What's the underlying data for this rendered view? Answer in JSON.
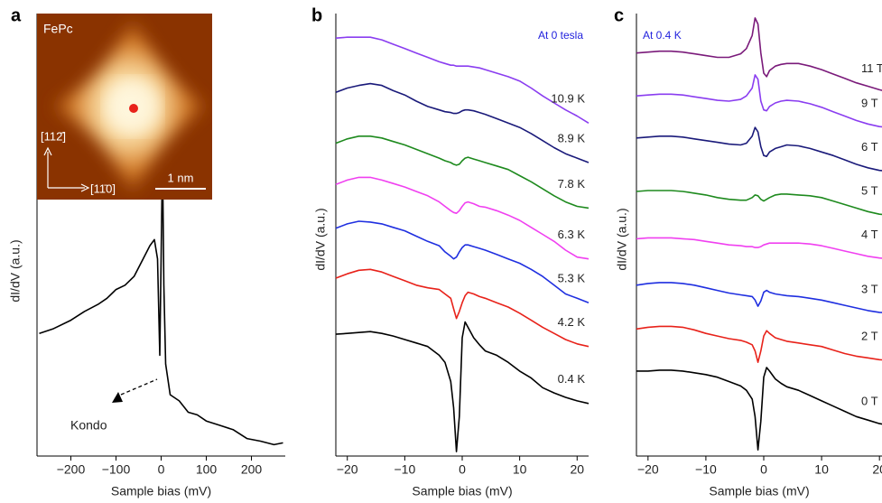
{
  "chart_data": [
    {
      "type": "line",
      "label": "a",
      "xlabel": "Sample bias (mV)",
      "ylabel": "dI/dV (a.u.)",
      "annotation": "Kondo",
      "inset": {
        "title": "FePc",
        "axis_y": "[112̄]",
        "axis_x": "[11̄0]",
        "scale_bar": "1 nm"
      },
      "x": [
        -270,
        -240,
        -200,
        -170,
        -140,
        -120,
        -100,
        -80,
        -60,
        -40,
        -25,
        -15,
        -8,
        -3,
        3,
        6,
        10,
        20,
        40,
        60,
        80,
        100,
        130,
        160,
        190,
        220,
        250,
        270
      ],
      "xlim": [
        -275,
        275
      ],
      "xticks": [
        {
          "value": -200,
          "label": "−200"
        },
        {
          "value": -100,
          "label": "−100"
        },
        0,
        100,
        200
      ],
      "ylim": [
        2.5,
        53
      ],
      "series": [
        {
          "color": "#000000",
          "values": [
            16.5,
            17.0,
            18.0,
            19.0,
            19.8,
            20.5,
            21.5,
            22.0,
            23.0,
            25.0,
            26.5,
            27.2,
            25.0,
            14.0,
            36.8,
            22.0,
            13.0,
            9.5,
            8.8,
            7.5,
            7.2,
            6.5,
            6.0,
            5.5,
            4.5,
            4.2,
            3.8,
            4.0
          ]
        }
      ]
    },
    {
      "type": "line",
      "label": "b",
      "xlabel": "Sample bias (mV)",
      "ylabel": "dI/dV (a.u.)",
      "annotation": "At 0 tesla",
      "x": [
        -22,
        -20,
        -18,
        -16,
        -14,
        -12,
        -10,
        -8,
        -6,
        -4,
        -3,
        -2,
        -1.5,
        -1,
        -0.5,
        0,
        0.5,
        1,
        2,
        3,
        4,
        6,
        8,
        10,
        12,
        14,
        16,
        18,
        20,
        22
      ],
      "xlim": [
        -22,
        22
      ],
      "xticks": [
        {
          "value": -20,
          "label": "−20"
        },
        {
          "value": -10,
          "label": "−10"
        },
        0,
        10,
        20
      ],
      "ylim": [
        2.5,
        53
      ],
      "series": [
        {
          "name": "0.4 K",
          "color": "#000000",
          "values": [
            16.4,
            16.5,
            16.6,
            16.7,
            16.5,
            16.2,
            15.8,
            15.4,
            15.0,
            14.0,
            13.2,
            11.0,
            8.0,
            3.0,
            7.0,
            16.0,
            17.8,
            17.2,
            16.0,
            15.2,
            14.5,
            14.0,
            13.2,
            12.2,
            11.4,
            10.3,
            9.7,
            9.2,
            8.8,
            8.5
          ]
        },
        {
          "name": "4.2 K",
          "color": "#e8221a",
          "values": [
            22.8,
            23.3,
            23.7,
            23.8,
            23.5,
            23.0,
            22.5,
            22.0,
            21.7,
            21.5,
            21.0,
            20.5,
            19.3,
            18.2,
            19.0,
            20.0,
            20.8,
            21.2,
            21.0,
            20.7,
            20.5,
            20.0,
            19.5,
            18.8,
            18.0,
            17.2,
            16.5,
            15.8,
            15.3,
            15.0
          ]
        },
        {
          "name": "5.3 K",
          "color": "#1f2fe0",
          "values": [
            28.5,
            29.0,
            29.3,
            29.2,
            29.0,
            28.6,
            28.2,
            27.6,
            27.0,
            26.5,
            25.8,
            25.3,
            25.0,
            25.2,
            25.8,
            26.3,
            26.6,
            26.6,
            26.4,
            26.2,
            26.0,
            25.5,
            25.0,
            24.5,
            23.8,
            23.0,
            22.0,
            21.0,
            20.5,
            20.0
          ]
        },
        {
          "name": "6.3 K",
          "color": "#f040f0",
          "values": [
            33.5,
            34.0,
            34.3,
            34.3,
            34.0,
            33.6,
            33.2,
            32.7,
            32.2,
            31.5,
            31.0,
            30.5,
            30.3,
            30.2,
            30.5,
            31.0,
            31.4,
            31.5,
            31.3,
            31.0,
            30.9,
            30.5,
            30.0,
            29.4,
            28.6,
            27.8,
            27.0,
            26.0,
            25.2,
            25.0
          ]
        },
        {
          "name": "7.8 K",
          "color": "#1e8a1e",
          "values": [
            38.2,
            38.7,
            39.0,
            39.0,
            38.8,
            38.4,
            38.0,
            37.5,
            37.0,
            36.5,
            36.2,
            36.0,
            35.8,
            35.7,
            35.8,
            36.2,
            36.5,
            36.6,
            36.4,
            36.2,
            36.0,
            35.6,
            35.2,
            34.5,
            33.8,
            33.0,
            32.2,
            31.5,
            31.0,
            30.8
          ]
        },
        {
          "name": "8.9 K",
          "color": "#1a1a7a",
          "values": [
            44.0,
            44.5,
            44.8,
            45.0,
            44.8,
            44.2,
            43.7,
            43.0,
            42.4,
            42.0,
            41.8,
            41.7,
            41.6,
            41.6,
            41.7,
            41.9,
            42.0,
            42.0,
            41.9,
            41.7,
            41.5,
            41.0,
            40.5,
            40.0,
            39.3,
            38.5,
            37.7,
            37.0,
            36.5,
            36.0
          ]
        },
        {
          "name": "10.9 K",
          "color": "#8a3df0",
          "values": [
            50.2,
            50.3,
            50.3,
            50.3,
            50.0,
            49.5,
            49.0,
            48.5,
            48.0,
            47.5,
            47.3,
            47.1,
            47.1,
            47.0,
            47.0,
            47.0,
            47.0,
            47.0,
            46.9,
            46.8,
            46.6,
            46.2,
            45.8,
            45.3,
            44.5,
            43.6,
            42.8,
            42.0,
            41.3,
            40.5
          ]
        }
      ]
    },
    {
      "type": "line",
      "label": "c",
      "xlabel": "Sample bias (mV)",
      "ylabel": "dI/dV (a.u.)",
      "annotation": "At 0.4 K",
      "x": [
        -22,
        -20,
        -18,
        -16,
        -14,
        -12,
        -10,
        -8,
        -6,
        -4,
        -3,
        -2,
        -1.5,
        -1,
        -0.5,
        0,
        0.5,
        1,
        2,
        3,
        4,
        6,
        8,
        10,
        12,
        14,
        16,
        18,
        20,
        22
      ],
      "xlim": [
        -22,
        22
      ],
      "xticks": [
        {
          "value": -20,
          "label": "−20"
        },
        {
          "value": -10,
          "label": "−10"
        },
        0,
        10,
        20
      ],
      "ylim": [
        2.5,
        53
      ],
      "series": [
        {
          "name": "0 T",
          "color": "#000000",
          "values": [
            12.2,
            12.2,
            12.3,
            12.3,
            12.2,
            12.0,
            11.8,
            11.5,
            11.0,
            10.5,
            10.0,
            9.0,
            7.0,
            3.2,
            6.5,
            11.5,
            12.6,
            12.2,
            11.3,
            10.8,
            10.4,
            10.0,
            9.4,
            8.8,
            8.2,
            7.6,
            7.0,
            6.6,
            6.2,
            6.0
          ]
        },
        {
          "name": "2 T",
          "color": "#e8221a",
          "values": [
            17.0,
            17.2,
            17.3,
            17.3,
            17.2,
            16.9,
            16.5,
            16.2,
            15.9,
            15.7,
            15.5,
            15.2,
            14.5,
            13.2,
            14.5,
            16.2,
            16.8,
            16.5,
            16.0,
            15.8,
            15.6,
            15.4,
            15.2,
            15.0,
            14.6,
            14.2,
            13.9,
            13.7,
            13.5,
            13.4
          ]
        },
        {
          "name": "3 T",
          "color": "#1f2fe0",
          "values": [
            22.0,
            22.2,
            22.3,
            22.3,
            22.2,
            22.0,
            21.7,
            21.4,
            21.1,
            20.9,
            20.8,
            20.7,
            20.3,
            19.6,
            20.2,
            21.2,
            21.4,
            21.2,
            21.0,
            20.9,
            20.8,
            20.7,
            20.5,
            20.3,
            20.0,
            19.7,
            19.4,
            19.1,
            18.9,
            18.8
          ]
        },
        {
          "name": "4 T",
          "color": "#f040f0",
          "values": [
            27.3,
            27.4,
            27.4,
            27.4,
            27.3,
            27.2,
            27.0,
            26.8,
            26.6,
            26.5,
            26.4,
            26.4,
            26.3,
            26.3,
            26.4,
            26.6,
            26.7,
            26.8,
            26.8,
            26.8,
            26.8,
            26.8,
            26.7,
            26.5,
            26.2,
            25.9,
            25.6,
            25.3,
            25.1,
            25.0
          ]
        },
        {
          "name": "5 T",
          "color": "#1e8a1e",
          "values": [
            32.7,
            32.8,
            32.8,
            32.8,
            32.7,
            32.5,
            32.3,
            32.0,
            31.8,
            31.7,
            31.7,
            32.0,
            32.3,
            32.2,
            31.8,
            31.6,
            31.8,
            32.0,
            32.3,
            32.4,
            32.4,
            32.3,
            32.2,
            32.0,
            31.6,
            31.2,
            30.8,
            30.4,
            30.1,
            30.0
          ]
        },
        {
          "name": "6 T",
          "color": "#1a1a7a",
          "values": [
            38.8,
            38.9,
            39.0,
            39.0,
            38.9,
            38.7,
            38.5,
            38.3,
            38.1,
            38.0,
            38.2,
            39.0,
            40.0,
            39.5,
            37.8,
            36.8,
            36.7,
            37.2,
            37.6,
            37.8,
            38.0,
            37.9,
            37.6,
            37.2,
            36.8,
            36.3,
            35.8,
            35.4,
            35.1,
            35.0
          ]
        },
        {
          "name": "9 T",
          "color": "#8a3df0",
          "values": [
            43.6,
            43.7,
            43.8,
            43.8,
            43.7,
            43.5,
            43.3,
            43.1,
            43.0,
            43.2,
            43.6,
            44.5,
            46.0,
            45.5,
            43.0,
            42.0,
            41.9,
            42.4,
            42.8,
            43.0,
            43.1,
            43.0,
            42.7,
            42.3,
            41.8,
            41.3,
            40.8,
            40.4,
            40.1,
            40.0
          ]
        },
        {
          "name": "11 T",
          "color": "#7a1a7a",
          "values": [
            48.5,
            48.6,
            48.7,
            48.7,
            48.6,
            48.4,
            48.2,
            48.0,
            48.0,
            48.4,
            49.0,
            50.5,
            52.5,
            51.8,
            48.5,
            46.2,
            45.8,
            46.5,
            47.0,
            47.2,
            47.3,
            47.3,
            47.0,
            46.6,
            46.1,
            45.6,
            45.1,
            44.7,
            44.3,
            44.0
          ]
        }
      ]
    }
  ]
}
